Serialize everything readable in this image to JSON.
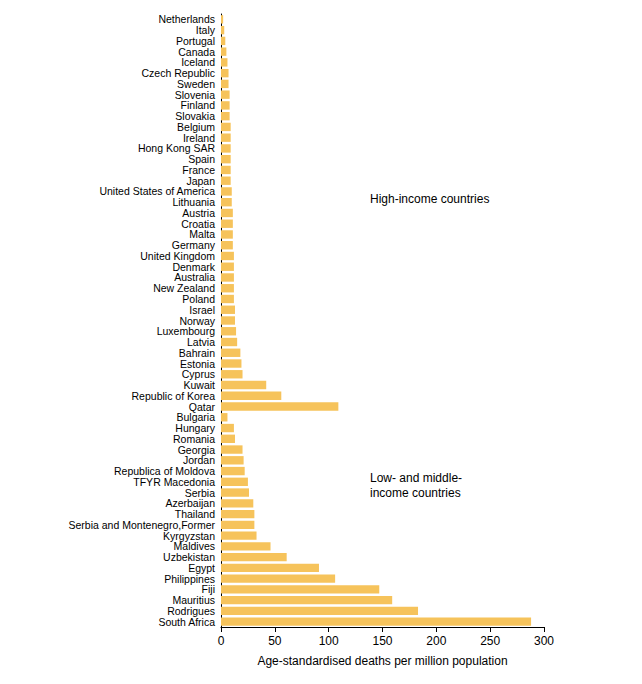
{
  "chart_data": {
    "type": "bar",
    "orientation": "horizontal",
    "xlabel": "Age-standardised deaths per million population",
    "annotations": [
      "High-income countries",
      "Low- and middle-\nincome countries"
    ],
    "categories": [
      "Netherlands",
      "Italy",
      "Portugal",
      "Canada",
      "Iceland",
      "Czech Republic",
      "Sweden",
      "Slovenia",
      "Finland",
      "Slovakia",
      "Belgium",
      "Ireland",
      "Hong Kong SAR",
      "Spain",
      "France",
      "Japan",
      "United States of America",
      "Lithuania",
      "Austria",
      "Croatia",
      "Malta",
      "Germany",
      "United Kingdom",
      "Denmark",
      "Australia",
      "New Zealand",
      "Poland",
      "Israel",
      "Norway",
      "Luxembourg",
      "Latvia",
      "Bahrain",
      "Estonia",
      "Cyprus",
      "Kuwait",
      "Republic of Korea",
      "Qatar",
      "Bulgaria",
      "Hungary",
      "Romania",
      "Georgia",
      "Jordan",
      "Republica of Moldova",
      "TFYR Macedonia",
      "Serbia",
      "Azerbaijan",
      "Thailand",
      "Serbia and Montenegro,Former",
      "Kyrgyzstan",
      "Maldives",
      "Uzbekistan",
      "Egypt",
      "Philippines",
      "Fiji",
      "Mauritius",
      "Rodrigues",
      "South Africa"
    ],
    "values": [
      2,
      3,
      4,
      5,
      6,
      7,
      7,
      8,
      8,
      8,
      9,
      9,
      9,
      9,
      9,
      9,
      10,
      10,
      11,
      11,
      11,
      11,
      12,
      12,
      12,
      12,
      12,
      13,
      13,
      14,
      15,
      18,
      19,
      20,
      42,
      56,
      109,
      6,
      12,
      13,
      20,
      21,
      22,
      25,
      26,
      30,
      31,
      31,
      33,
      46,
      61,
      91,
      106,
      147,
      159,
      183,
      288
    ],
    "color": "#f6c35b",
    "xlim": [
      0,
      300
    ],
    "xticks": [
      0,
      50,
      100,
      150,
      200,
      250,
      300
    ],
    "grid": false
  }
}
